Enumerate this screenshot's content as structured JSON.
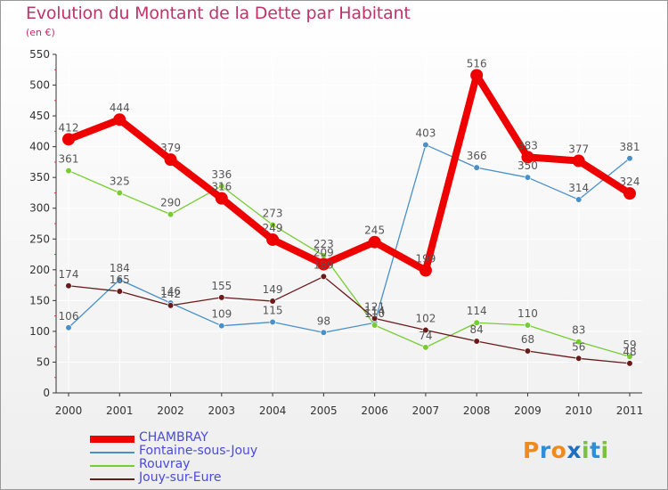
{
  "title": "Evolution du Montant de la Dette par Habitant",
  "unit_label": "(en €)",
  "logo_text": "Proxiti",
  "colors": {
    "title": "#c0336a",
    "legend_text": "#4a4ae0",
    "axis": "#333333",
    "grid": "#ffffff",
    "logo": [
      "#f08a1c",
      "#2e8fd8",
      "#f08a1c",
      "#1f6fc0",
      "#7bc13f",
      "#2e8fd8",
      "#7bc13f"
    ]
  },
  "chart_data": {
    "type": "line",
    "title": "Evolution du Montant de la Dette par Habitant",
    "ylabel": "(en €)",
    "xlabel": "",
    "categories": [
      "2000",
      "2001",
      "2002",
      "2003",
      "2004",
      "2005",
      "2006",
      "2007",
      "2008",
      "2009",
      "2010",
      "2011"
    ],
    "ylim": [
      0,
      550
    ],
    "yticks": [
      "0",
      "50",
      "100",
      "150",
      "200",
      "250",
      "300",
      "350",
      "400",
      "450",
      "500",
      "550"
    ],
    "grid": true,
    "legend_position": "bottom-left",
    "series": [
      {
        "name": "CHAMBRAY",
        "color": "#ee0000",
        "values": [
          412,
          444,
          379,
          316,
          249,
          209,
          245,
          199,
          516,
          383,
          377,
          324
        ]
      },
      {
        "name": "Fontaine-sous-Jouy",
        "color": "#4a90c8",
        "values": [
          106,
          184,
          146,
          109,
          115,
          98,
          114,
          403,
          366,
          350,
          314,
          381
        ]
      },
      {
        "name": "Rouvray",
        "color": "#77cc33",
        "values": [
          361,
          325,
          290,
          336,
          273,
          223,
          110,
          74,
          114,
          110,
          83,
          59
        ]
      },
      {
        "name": "Jouy-sur-Eure",
        "color": "#6b1a1a",
        "values": [
          174,
          165,
          142,
          155,
          149,
          189,
          121,
          102,
          84,
          68,
          56,
          48
        ]
      }
    ]
  }
}
